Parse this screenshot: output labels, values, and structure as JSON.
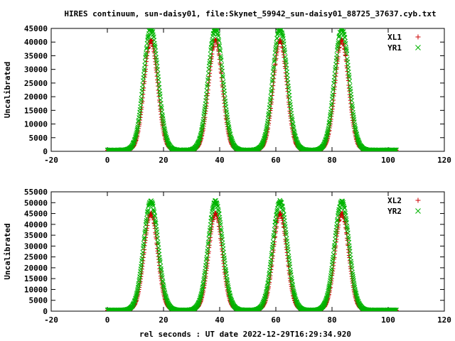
{
  "chart_data": {
    "title": "HIRES continuum, sun-daisy01, file:Skynet_59942_sun-daisy01_88725_37637.cyb.txt",
    "xlabel": "rel seconds : UT date 2022-12-29T16:29:34.920",
    "type": "scatter",
    "panels": [
      {
        "ylabel": "Uncalibrated",
        "xlim": [
          -20,
          120
        ],
        "ylim": [
          0,
          45000
        ],
        "xticks": [
          -20,
          0,
          20,
          40,
          60,
          80,
          100,
          120
        ],
        "yticks": [
          0,
          5000,
          10000,
          15000,
          20000,
          25000,
          30000,
          35000,
          40000,
          45000
        ],
        "peaks": [
          15.5,
          38.5,
          61.5,
          83.5
        ],
        "x_range": [
          0,
          103
        ],
        "series": [
          {
            "name": "XL1",
            "marker": "+",
            "color": "#cc0000",
            "baseline": 400,
            "peak": 40500,
            "width": 2.4
          },
          {
            "name": "YR1",
            "marker": "×",
            "color": "#00b400",
            "baseline": 450,
            "peak": 45000,
            "width": 2.6
          }
        ]
      },
      {
        "ylabel": "Uncalibrated",
        "xlim": [
          -20,
          120
        ],
        "ylim": [
          0,
          55000
        ],
        "xticks": [
          -20,
          0,
          20,
          40,
          60,
          80,
          100,
          120
        ],
        "yticks": [
          0,
          5000,
          10000,
          15000,
          20000,
          25000,
          30000,
          35000,
          40000,
          45000,
          50000,
          55000
        ],
        "peaks": [
          15.5,
          38.5,
          61.5,
          83.5
        ],
        "x_range": [
          0,
          103
        ],
        "series": [
          {
            "name": "XL2",
            "marker": "+",
            "color": "#cc0000",
            "baseline": 450,
            "peak": 45000,
            "width": 2.4
          },
          {
            "name": "YR2",
            "marker": "×",
            "color": "#00b400",
            "baseline": 500,
            "peak": 50500,
            "width": 2.6
          }
        ]
      }
    ]
  }
}
